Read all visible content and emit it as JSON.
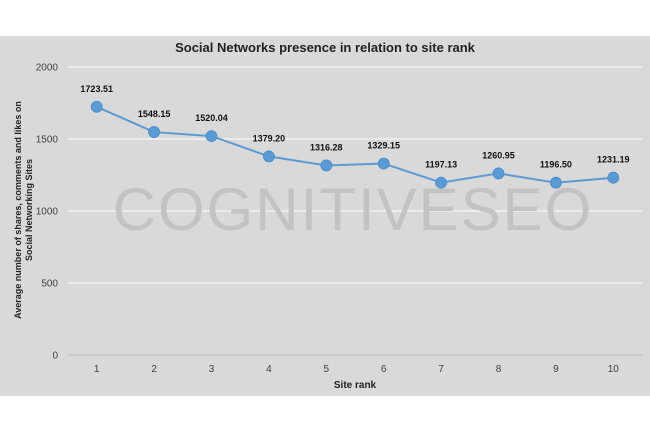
{
  "watermark": "COGNITIVESEO",
  "chart_data": {
    "type": "line",
    "title": "Social Networks presence in relation to site rank",
    "xlabel": "Site rank",
    "ylabel": "Average number of shares, comments and likes on Social Networking Sites",
    "ylabel_lines": [
      "Average number of shares, comments and likes on",
      "Social Networking Sites"
    ],
    "categories": [
      "1",
      "2",
      "3",
      "4",
      "5",
      "6",
      "7",
      "8",
      "9",
      "10"
    ],
    "values": [
      1723.51,
      1548.15,
      1520.04,
      1379.2,
      1316.28,
      1329.15,
      1197.13,
      1260.95,
      1196.5,
      1231.19
    ],
    "data_labels": [
      "1723.51",
      "1548.15",
      "1520.04",
      "1379.20",
      "1316.28",
      "1329.15",
      "1197.13",
      "1260.95",
      "1196.50",
      "1231.19"
    ],
    "ylim": [
      0,
      2000
    ],
    "yticks": [
      "0",
      "500",
      "1000",
      "1500",
      "2000"
    ],
    "grid": true,
    "legend": "none",
    "colors": {
      "line": "#5b9bd5",
      "background": "#d9d9d9",
      "gridline": "#ffffff",
      "watermark": "#c3c3c3"
    }
  }
}
